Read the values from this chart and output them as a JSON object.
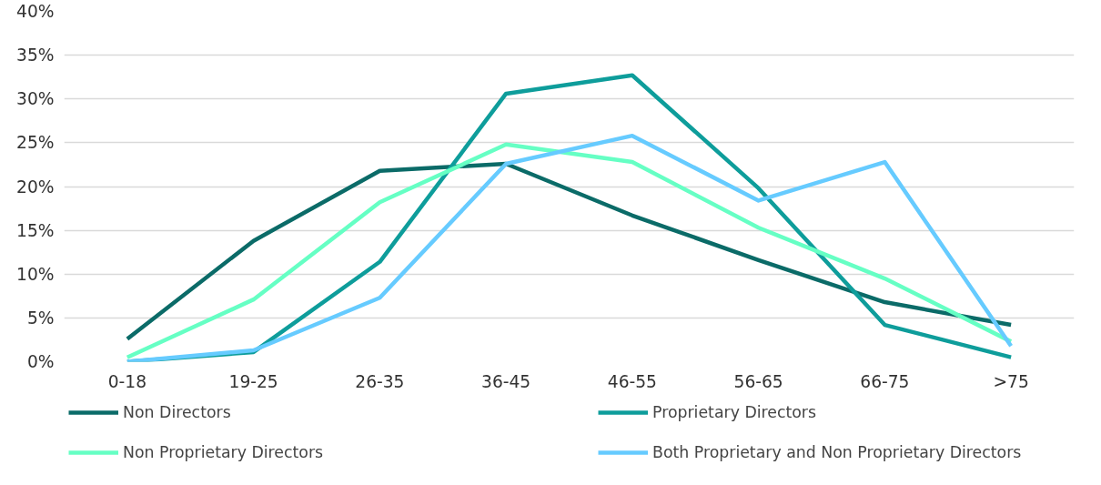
{
  "chart_data": {
    "type": "line",
    "categories": [
      "0-18",
      "19-25",
      "26-35",
      "36-45",
      "46-55",
      "56-65",
      "66-75",
      ">75"
    ],
    "series": [
      {
        "name": "Non Directors",
        "color": "#0b6b68",
        "values": [
          2.6,
          13.8,
          21.8,
          22.6,
          16.7,
          11.6,
          6.8,
          4.2
        ]
      },
      {
        "name": "Proprietary Directors",
        "color": "#0e9d9b",
        "values": [
          0,
          1.1,
          11.4,
          30.6,
          32.7,
          19.8,
          4.2,
          0.5
        ]
      },
      {
        "name": "Non Proprietary Directors",
        "color": "#66ffc4",
        "values": [
          0.5,
          7.1,
          18.2,
          24.8,
          22.8,
          15.3,
          9.5,
          2.3
        ]
      },
      {
        "name": "Both Proprietary and Non Proprietary Directors",
        "color": "#66cbff",
        "values": [
          0,
          1.3,
          7.3,
          22.6,
          25.8,
          18.4,
          22.8,
          1.8
        ]
      }
    ],
    "ylim": [
      0,
      40
    ],
    "yticks": [
      {
        "value": 0,
        "label": "0%"
      },
      {
        "value": 5,
        "label": "5%"
      },
      {
        "value": 10,
        "label": "10%"
      },
      {
        "value": 15,
        "label": "15%"
      },
      {
        "value": 20,
        "label": "20%"
      },
      {
        "value": 25,
        "label": "25%"
      },
      {
        "value": 30,
        "label": "30%"
      },
      {
        "value": 35,
        "label": "35%"
      },
      {
        "value": 40,
        "label": "40%"
      }
    ],
    "grid": "y",
    "legend": "bottom",
    "marker": "none",
    "line_style": "solid"
  }
}
